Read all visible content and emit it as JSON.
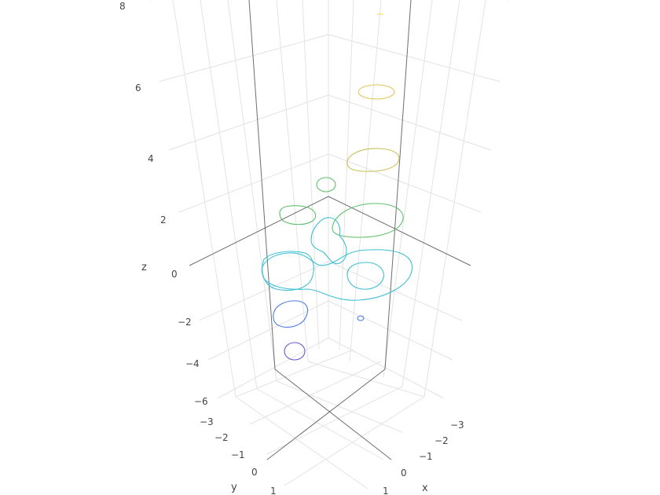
{
  "chart_data": {
    "type": "contour3d",
    "title": "",
    "axes": {
      "x": {
        "title": "x",
        "ticks": [
          "1",
          "0",
          "−1",
          "−2",
          "−3"
        ]
      },
      "y": {
        "title": "y",
        "ticks": [
          "1",
          "0",
          "−1",
          "−2",
          "−3"
        ]
      },
      "z": {
        "title": "z",
        "ticks": [
          "−6",
          "−4",
          "−2",
          "0",
          "2",
          "4",
          "6",
          "8"
        ]
      }
    },
    "colorscale": "viridis",
    "contour_levels": [
      {
        "z": -4,
        "color": "#6a5acd"
      },
      {
        "z": -2,
        "color": "#4a7fe0"
      },
      {
        "z": 0,
        "color": "#3fc0d4"
      },
      {
        "z": 2,
        "color": "#5ec06a"
      },
      {
        "z": 4,
        "color": "#c8c25a"
      },
      {
        "z": 6,
        "color": "#e3c75a"
      },
      {
        "z": 8,
        "color": "#f5dd4a"
      }
    ]
  }
}
